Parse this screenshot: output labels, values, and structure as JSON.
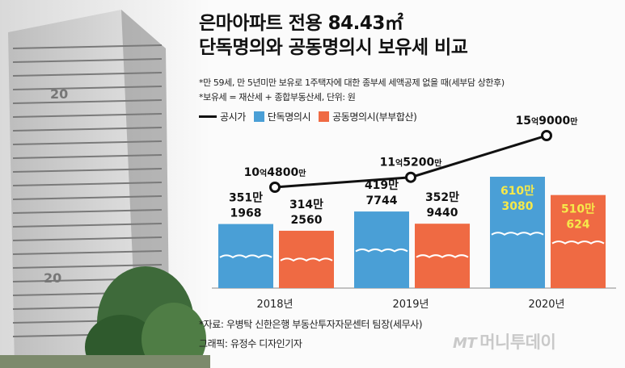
{
  "header": {
    "title_line1": "은마아파트 전용 84.43㎡",
    "title_line2": "단독명의와 공동명의시 보유세 비교"
  },
  "notes": {
    "line1": "*만 59세, 만 5년미만 보유로 1주택자에 대한 종부세 세액공제 없을 때(세부담 상한후)",
    "line2": "*보유세 = 재산세 + 종합부동산세, 단위: 원"
  },
  "colors": {
    "single": "#4a9fd6",
    "joint": "#ef6a43",
    "line": "#111111",
    "highlight_text": "#f6e94a"
  },
  "building": {
    "numbers": [
      "20",
      "20"
    ]
  },
  "chart_data": {
    "type": "bar",
    "categories": [
      "2018년",
      "2019년",
      "2020년"
    ],
    "legend": [
      "공시가",
      "단독명의시",
      "공동명의시(부부합산)"
    ],
    "series": [
      {
        "name": "단독명의시",
        "values": [
          3511968,
          4197744,
          6103080
        ],
        "labels_top": [
          "351만",
          "419만",
          "610만"
        ],
        "labels_bottom": [
          "1968",
          "7744",
          "3080"
        ]
      },
      {
        "name": "공동명의시(부부합산)",
        "values": [
          3142560,
          3529440,
          5100624
        ],
        "labels_top": [
          "314만",
          "352만",
          "510만"
        ],
        "labels_bottom": [
          "2560",
          "9440",
          "624"
        ]
      }
    ],
    "line_series": {
      "name": "공시가",
      "values": [
        1048000000,
        1152000000,
        1590000000
      ],
      "labels": [
        {
          "big1": "10",
          "small1": "억",
          "big2": "4800",
          "small2": "만"
        },
        {
          "big1": "11",
          "small1": "억",
          "big2": "5200",
          "small2": "만"
        },
        {
          "big1": "15",
          "small1": "억",
          "big2": "9000",
          "small2": "만"
        }
      ]
    }
  },
  "footer": {
    "source": "*자료: 우병탁 신한은행 부동산투자자문센터 팀장(세무사)",
    "graphic": "그래픽: 유정수 디자인기자",
    "watermark_mt": "MT",
    "watermark_name": "머니투데이"
  }
}
